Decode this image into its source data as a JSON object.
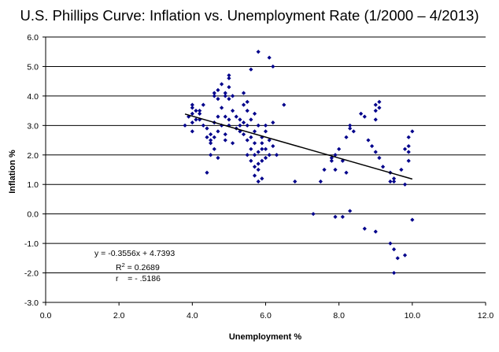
{
  "chart_data": {
    "type": "scatter",
    "title": "U.S. Phillips Curve: Inflation vs. Unemployment Rate (1/2000 – 4/2013)",
    "xlabel": "Unemployment %",
    "ylabel": "Inflation %",
    "xlim": [
      0,
      12
    ],
    "ylim": [
      -3,
      6
    ],
    "xticks": [
      0,
      2,
      4,
      6,
      8,
      10,
      12
    ],
    "yticks": [
      -3,
      -2,
      -1,
      0,
      1,
      2,
      3,
      4,
      5,
      6
    ],
    "xtick_labels": [
      "0.0",
      "2.0",
      "4.0",
      "6.0",
      "8.0",
      "10.0",
      "12.0"
    ],
    "ytick_labels": [
      "-3.0",
      "-2.0",
      "-1.0",
      "0.0",
      "1.0",
      "2.0",
      "3.0",
      "4.0",
      "5.0",
      "6.0"
    ],
    "grid": "horizontal",
    "marker_color": "#00008B",
    "trendline": {
      "slope": -0.3556,
      "intercept": 4.7393,
      "x_range": [
        3.8,
        10.0
      ],
      "color": "#000000"
    },
    "annotations": {
      "equation": "y = -0.3556x + 4.7393",
      "r2_prefix": "R",
      "r2_exponent": "2",
      "r2_value": " = 0.2689",
      "r_line": "r    = - .5186"
    },
    "points": [
      [
        4.0,
        3.7
      ],
      [
        4.0,
        3.6
      ],
      [
        4.1,
        3.2
      ],
      [
        4.0,
        3.4
      ],
      [
        4.0,
        3.1
      ],
      [
        4.2,
        3.5
      ],
      [
        3.9,
        3.3
      ],
      [
        3.8,
        3.0
      ],
      [
        4.3,
        3.7
      ],
      [
        4.2,
        3.4
      ],
      [
        4.0,
        2.8
      ],
      [
        4.1,
        3.5
      ],
      [
        4.2,
        3.2
      ],
      [
        4.3,
        3.0
      ],
      [
        4.4,
        2.9
      ],
      [
        4.5,
        2.7
      ],
      [
        4.4,
        2.6
      ],
      [
        4.5,
        2.4
      ],
      [
        4.6,
        2.2
      ],
      [
        4.5,
        2.0
      ],
      [
        4.7,
        1.9
      ],
      [
        4.6,
        2.6
      ],
      [
        4.5,
        2.5
      ],
      [
        4.4,
        1.4
      ],
      [
        4.6,
        4.0
      ],
      [
        4.7,
        4.2
      ],
      [
        4.6,
        4.1
      ],
      [
        4.7,
        3.9
      ],
      [
        4.8,
        3.6
      ],
      [
        4.9,
        3.3
      ],
      [
        5.0,
        3.2
      ],
      [
        4.8,
        4.4
      ],
      [
        5.0,
        4.6
      ],
      [
        5.0,
        4.7
      ],
      [
        5.0,
        4.3
      ],
      [
        4.9,
        4.1
      ],
      [
        5.0,
        3.9
      ],
      [
        5.1,
        3.5
      ],
      [
        5.0,
        3.0
      ],
      [
        4.9,
        2.7
      ],
      [
        4.9,
        2.5
      ],
      [
        5.1,
        2.4
      ],
      [
        4.7,
        2.8
      ],
      [
        4.8,
        3.0
      ],
      [
        4.6,
        3.1
      ],
      [
        4.7,
        3.3
      ],
      [
        4.9,
        4.0
      ],
      [
        5.1,
        4.0
      ],
      [
        5.2,
        3.3
      ],
      [
        5.3,
        3.2
      ],
      [
        5.4,
        3.1
      ],
      [
        5.5,
        3.5
      ],
      [
        5.4,
        3.7
      ],
      [
        5.5,
        3.8
      ],
      [
        5.4,
        4.1
      ],
      [
        5.3,
        3.0
      ],
      [
        5.6,
        3.2
      ],
      [
        5.7,
        2.8
      ],
      [
        5.5,
        2.5
      ],
      [
        5.6,
        2.2
      ],
      [
        5.7,
        2.0
      ],
      [
        5.6,
        1.8
      ],
      [
        5.7,
        1.6
      ],
      [
        5.8,
        1.5
      ],
      [
        5.7,
        1.3
      ],
      [
        5.8,
        1.1
      ],
      [
        5.9,
        1.2
      ],
      [
        5.9,
        1.8
      ],
      [
        5.8,
        2.1
      ],
      [
        5.9,
        2.6
      ],
      [
        5.8,
        3.0
      ],
      [
        5.7,
        3.4
      ],
      [
        5.6,
        4.9
      ],
      [
        5.8,
        5.5
      ],
      [
        6.0,
        3.0
      ],
      [
        6.1,
        2.5
      ],
      [
        6.0,
        2.2
      ],
      [
        6.1,
        2.0
      ],
      [
        6.2,
        2.3
      ],
      [
        6.0,
        1.9
      ],
      [
        6.3,
        2.0
      ],
      [
        6.1,
        5.3
      ],
      [
        6.2,
        5.0
      ],
      [
        6.2,
        3.1
      ],
      [
        6.5,
        3.7
      ],
      [
        5.5,
        3.0
      ],
      [
        5.3,
        2.8
      ],
      [
        5.2,
        2.9
      ],
      [
        5.4,
        2.7
      ],
      [
        5.6,
        2.6
      ],
      [
        5.5,
        2.0
      ],
      [
        5.7,
        2.4
      ],
      [
        5.9,
        2.2
      ],
      [
        6.0,
        2.8
      ],
      [
        5.9,
        2.4
      ],
      [
        5.8,
        1.7
      ],
      [
        6.8,
        1.1
      ],
      [
        7.5,
        1.1
      ],
      [
        7.6,
        1.5
      ],
      [
        7.8,
        1.8
      ],
      [
        7.9,
        2.0
      ],
      [
        8.0,
        2.2
      ],
      [
        8.2,
        2.6
      ],
      [
        8.3,
        2.9
      ],
      [
        8.1,
        1.8
      ],
      [
        8.2,
        1.4
      ],
      [
        8.3,
        3.0
      ],
      [
        8.4,
        2.8
      ],
      [
        8.6,
        3.4
      ],
      [
        8.7,
        3.3
      ],
      [
        8.8,
        2.5
      ],
      [
        8.9,
        2.3
      ],
      [
        9.0,
        3.5
      ],
      [
        9.0,
        3.7
      ],
      [
        9.1,
        3.6
      ],
      [
        9.1,
        3.8
      ],
      [
        9.0,
        3.2
      ],
      [
        9.0,
        2.1
      ],
      [
        9.1,
        1.9
      ],
      [
        9.2,
        1.6
      ],
      [
        9.4,
        1.4
      ],
      [
        9.5,
        1.2
      ],
      [
        9.4,
        1.1
      ],
      [
        9.5,
        1.1
      ],
      [
        9.8,
        1.0
      ],
      [
        9.9,
        2.1
      ],
      [
        9.9,
        2.3
      ],
      [
        10.0,
        2.8
      ],
      [
        9.9,
        2.6
      ],
      [
        9.8,
        2.2
      ],
      [
        9.9,
        1.8
      ],
      [
        9.7,
        1.5
      ],
      [
        7.9,
        1.5
      ],
      [
        7.8,
        1.9
      ],
      [
        7.3,
        0.0
      ],
      [
        7.9,
        -0.1
      ],
      [
        8.1,
        -0.1
      ],
      [
        8.3,
        0.1
      ],
      [
        8.7,
        -0.5
      ],
      [
        9.0,
        -0.6
      ],
      [
        9.4,
        -1.0
      ],
      [
        9.5,
        -1.2
      ],
      [
        9.6,
        -1.5
      ],
      [
        9.8,
        -1.4
      ],
      [
        9.5,
        -2.0
      ],
      [
        10.0,
        -0.2
      ]
    ]
  }
}
